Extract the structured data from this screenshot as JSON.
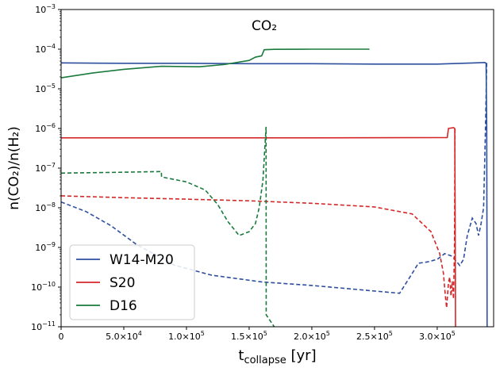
{
  "chart_data": {
    "type": "line",
    "title": "CO₂",
    "xlabel": "t",
    "xlabel_sub": "collapse",
    "xlabel_unit": " [yr]",
    "ylabel": "n(CO₂)/n(H₂)",
    "xlim": [
      0,
      345000
    ],
    "ylim": [
      1e-11,
      0.001
    ],
    "y_scale": "log",
    "grid": false,
    "legend_position": "lower-left",
    "x_ticks": [
      {
        "value": 0,
        "mantissa": "0",
        "exp": ""
      },
      {
        "value": 50000,
        "mantissa": "5.0×10",
        "exp": "4"
      },
      {
        "value": 100000,
        "mantissa": "1.0×10",
        "exp": "5"
      },
      {
        "value": 150000,
        "mantissa": "1.5×10",
        "exp": "5"
      },
      {
        "value": 200000,
        "mantissa": "2.0×10",
        "exp": "5"
      },
      {
        "value": 250000,
        "mantissa": "2.5×10",
        "exp": "5"
      },
      {
        "value": 300000,
        "mantissa": "3.0×10",
        "exp": "5"
      }
    ],
    "y_ticks": [
      {
        "value": 1e-11,
        "exp": "−11"
      },
      {
        "value": 1e-10,
        "exp": "−10"
      },
      {
        "value": 1e-09,
        "exp": "−9"
      },
      {
        "value": 1e-08,
        "exp": "−8"
      },
      {
        "value": 1e-07,
        "exp": "−7"
      },
      {
        "value": 1e-06,
        "exp": "−6"
      },
      {
        "value": 1e-05,
        "exp": "−5"
      },
      {
        "value": 0.0001,
        "exp": "−4"
      },
      {
        "value": 0.001,
        "exp": "−3"
      }
    ],
    "series": [
      {
        "name": "W14-M20",
        "color": "#2d4f9e",
        "solid": [
          [
            0,
            4.5e-05
          ],
          [
            50000,
            4.4e-05
          ],
          [
            100000,
            4.4e-05
          ],
          [
            150000,
            4.3e-05
          ],
          [
            200000,
            4.3e-05
          ],
          [
            250000,
            4.2e-05
          ],
          [
            300000,
            4.2e-05
          ],
          [
            330000,
            4.5e-05
          ],
          [
            338000,
            4.6e-05
          ],
          [
            339000,
            4.4e-05
          ],
          [
            339500,
            1e-06
          ],
          [
            339700,
            1e-09
          ],
          [
            339800,
            1e-11
          ]
        ],
        "dashed": [
          [
            0,
            1.4e-08
          ],
          [
            20000,
            8e-09
          ],
          [
            40000,
            3.5e-09
          ],
          [
            60000,
            1.2e-09
          ],
          [
            90000,
            3.6e-10
          ],
          [
            120000,
            2e-10
          ],
          [
            160000,
            1.35e-10
          ],
          [
            200000,
            1.1e-10
          ],
          [
            240000,
            8.5e-11
          ],
          [
            270000,
            7e-11
          ],
          [
            280000,
            2.2e-10
          ],
          [
            285000,
            4e-10
          ],
          [
            292000,
            4.3e-10
          ],
          [
            300000,
            5e-10
          ],
          [
            306000,
            7e-10
          ],
          [
            312000,
            6e-10
          ],
          [
            318000,
            3.5e-10
          ],
          [
            321000,
            5e-10
          ],
          [
            324000,
            2e-09
          ],
          [
            328000,
            5.5e-09
          ],
          [
            331000,
            4e-09
          ],
          [
            333000,
            2e-09
          ],
          [
            335000,
            4e-09
          ],
          [
            337000,
            1e-08
          ],
          [
            338500,
            1e-06
          ],
          [
            339500,
            4.6e-05
          ]
        ]
      },
      {
        "name": "S20",
        "color": "#d62728",
        "solid": [
          [
            0,
            5.8e-07
          ],
          [
            100000,
            5.8e-07
          ],
          [
            200000,
            5.8e-07
          ],
          [
            308000,
            5.9e-07
          ],
          [
            309000,
            1e-06
          ],
          [
            313000,
            1.05e-06
          ],
          [
            314000,
            1e-06
          ],
          [
            314300,
            1e-08
          ],
          [
            314600,
            1e-11
          ]
        ],
        "dashed": [
          [
            0,
            2e-08
          ],
          [
            50000,
            1.8e-08
          ],
          [
            100000,
            1.65e-08
          ],
          [
            150000,
            1.5e-08
          ],
          [
            200000,
            1.3e-08
          ],
          [
            250000,
            1.05e-08
          ],
          [
            280000,
            7e-09
          ],
          [
            295000,
            2.5e-09
          ],
          [
            302000,
            7e-10
          ],
          [
            305000,
            2.2e-10
          ],
          [
            306500,
            6e-11
          ],
          [
            307500,
            3e-11
          ],
          [
            309000,
            1.3e-10
          ],
          [
            310000,
            1.8e-10
          ],
          [
            311000,
            6e-11
          ],
          [
            312000,
            1.4e-10
          ],
          [
            313000,
            5e-11
          ],
          [
            313800,
            1e-09
          ],
          [
            314200,
            1e-06
          ]
        ]
      },
      {
        "name": "D16",
        "color": "#1a7a3c",
        "solid": [
          [
            0,
            1.9e-05
          ],
          [
            25000,
            2.5e-05
          ],
          [
            50000,
            3.1e-05
          ],
          [
            80000,
            3.7e-05
          ],
          [
            110000,
            3.6e-05
          ],
          [
            130000,
            4.1e-05
          ],
          [
            150000,
            5.2e-05
          ],
          [
            155000,
            6.3e-05
          ],
          [
            160000,
            6.8e-05
          ],
          [
            162000,
            9.7e-05
          ],
          [
            170000,
            9.9e-05
          ],
          [
            200000,
            0.0001
          ],
          [
            246000,
            0.0001
          ]
        ],
        "dashed": [
          [
            0,
            7.5e-08
          ],
          [
            40000,
            7.8e-08
          ],
          [
            80000,
            8.2e-08
          ],
          [
            80100,
            6e-08
          ],
          [
            100000,
            4.5e-08
          ],
          [
            115000,
            2.8e-08
          ],
          [
            125000,
            1.2e-08
          ],
          [
            133000,
            4.5e-09
          ],
          [
            142000,
            2e-09
          ],
          [
            150000,
            2.5e-09
          ],
          [
            155000,
            4e-09
          ],
          [
            158000,
            1e-08
          ],
          [
            161000,
            5e-08
          ],
          [
            163500,
            1.1e-06
          ],
          [
            163600,
            2e-11
          ],
          [
            170000,
            1e-11
          ]
        ]
      }
    ]
  }
}
